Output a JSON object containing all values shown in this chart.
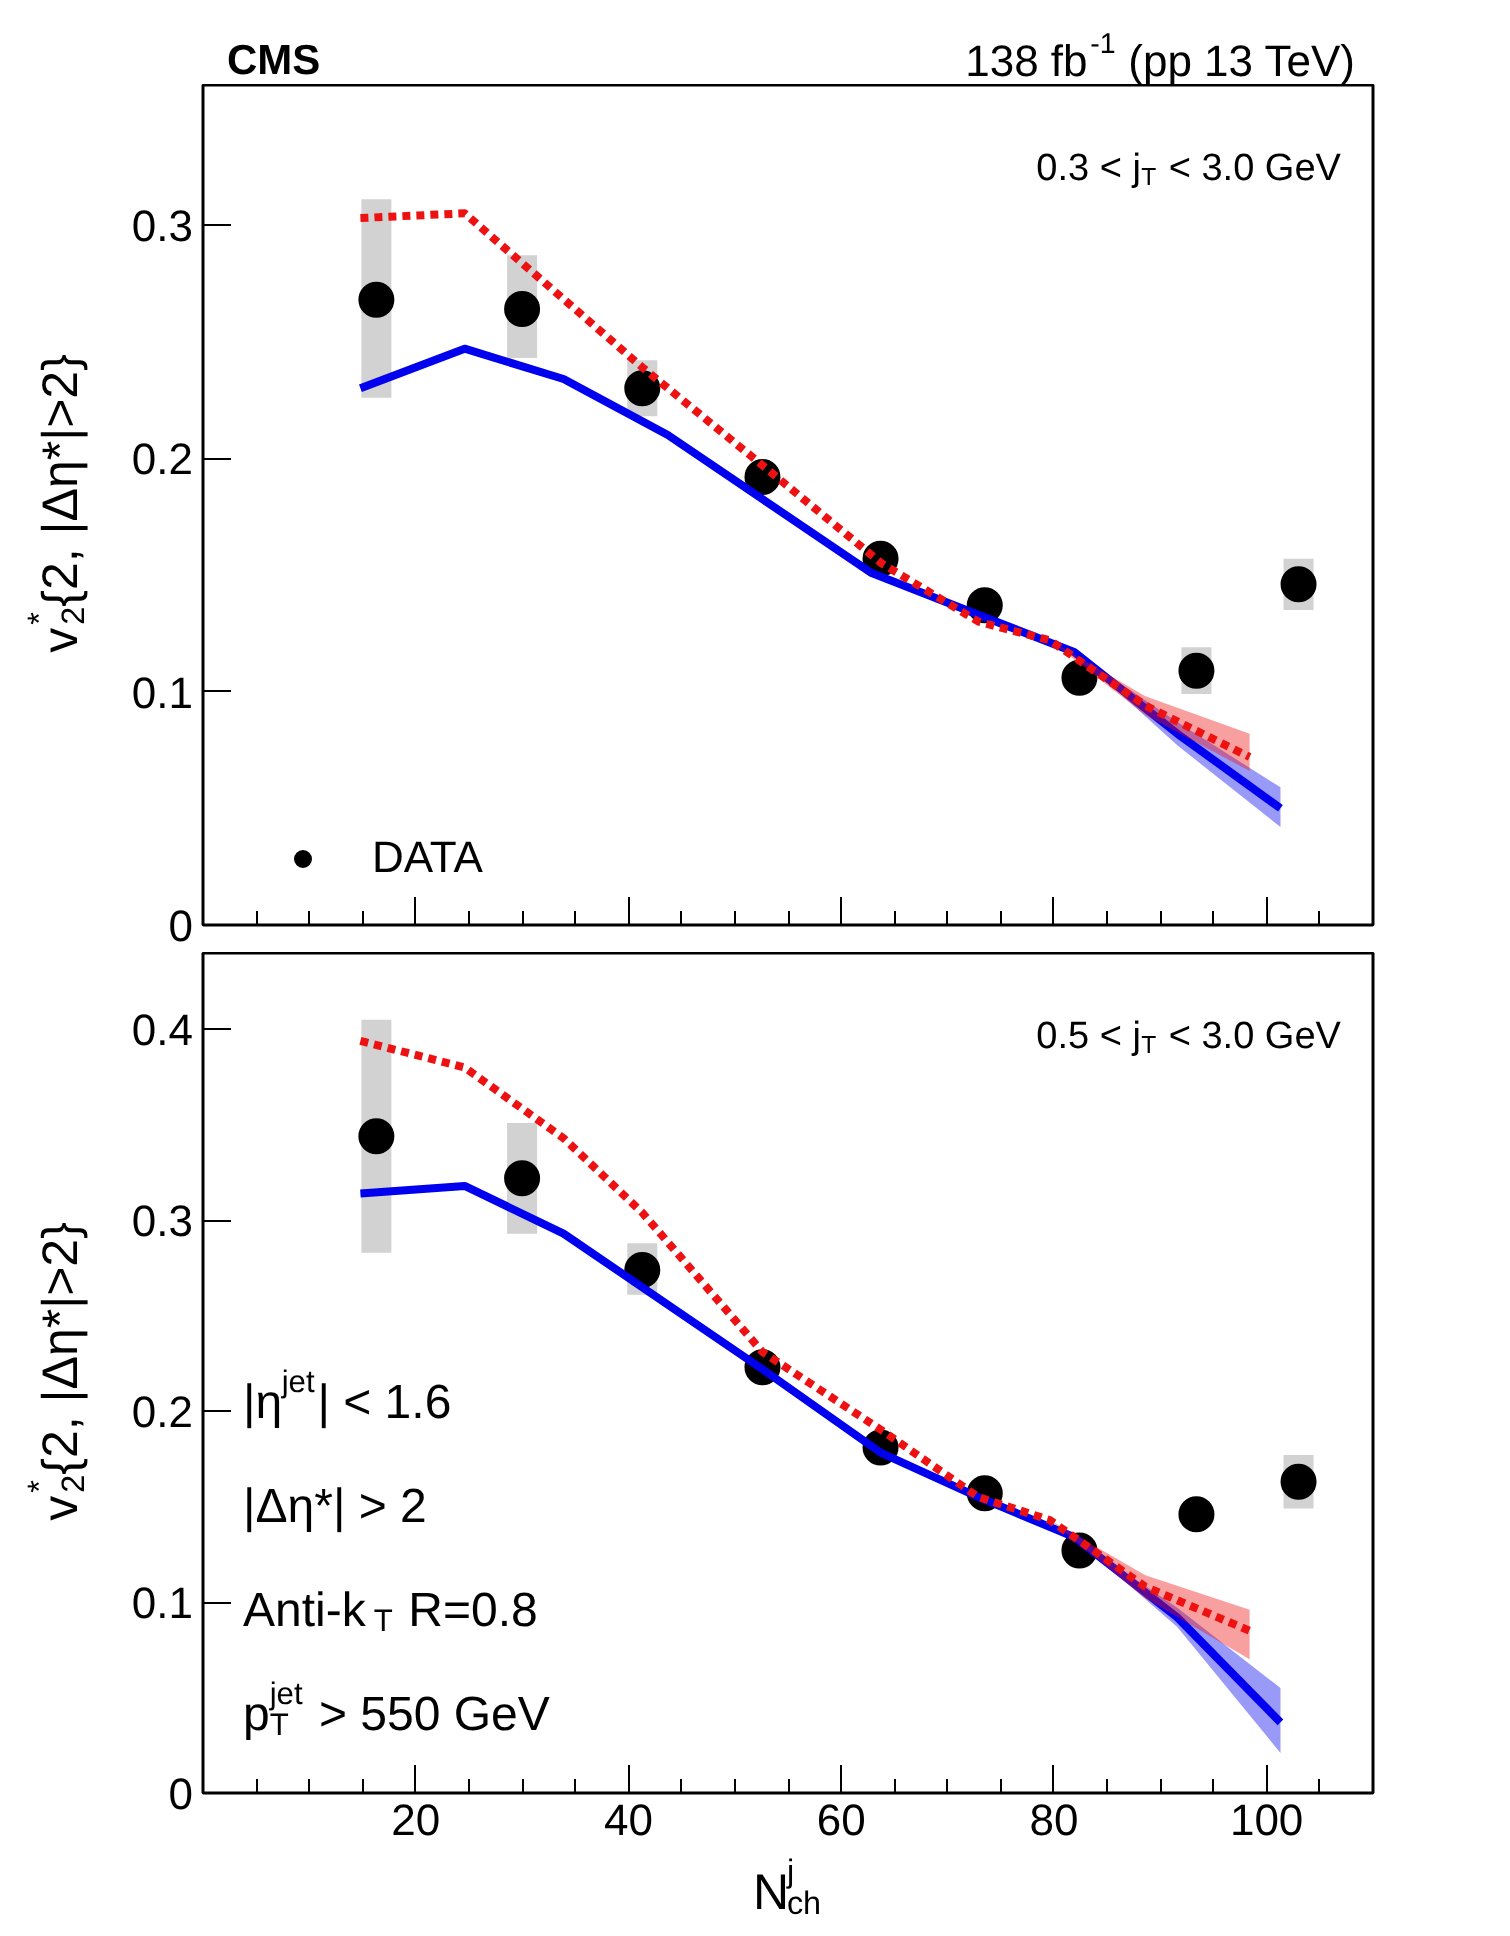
{
  "chart_data": [
    {
      "type": "line",
      "title": "CMS",
      "subtitle": "138 fb$^{-1}$ (pp 13 TeV)",
      "ylabel": "v$^{*}$$_{2}${2, |Δη*|>2}",
      "annotations": [
        "0.3 < j$_{T}$ < 3.0 GeV"
      ],
      "xlim": [
        0,
        110
      ],
      "ylim": [
        0,
        0.36
      ],
      "xticks": [
        20,
        40,
        60,
        80,
        100
      ],
      "yticks": [
        0,
        0.1,
        0.2,
        0.3
      ],
      "tick_labels": "y",
      "legend": "bottom left",
      "series": [
        {
          "name": "DATA",
          "type": "scatter",
          "marker": "circle",
          "color": "#000000",
          "x": [
            16.3,
            30.0,
            41.3,
            52.6,
            63.7,
            73.5,
            82.4,
            93.4,
            103.0
          ],
          "values": [
            0.268,
            0.264,
            0.23,
            0.192,
            0.157,
            0.137,
            0.106,
            0.109,
            0.146
          ],
          "errors": [
            [
              0.226,
              0.311
            ],
            [
              0.243,
              0.287
            ],
            [
              0.218,
              0.242
            ],
            null,
            null,
            null,
            null,
            0.01,
            0.011
          ]
        },
        {
          "line_style": "solid",
          "color": "#0000ee",
          "x": [
            14.8,
            24.6,
            33.9,
            43.7,
            62.8,
            72.9,
            81.9,
            91.6,
            101.3
          ],
          "values": [
            0.23,
            0.247,
            0.234,
            0.21,
            0.151,
            0.133,
            0.117,
            0.082,
            0.05
          ],
          "lower": [
            null,
            null,
            null,
            null,
            null,
            null,
            0.117,
            0.077,
            0.042
          ],
          "upper": [
            null,
            null,
            null,
            null,
            null,
            null,
            0.117,
            0.087,
            0.059
          ]
        },
        {
          "line_style": "dotted",
          "color": "#ee1111",
          "x": [
            14.8,
            24.6,
            41.3,
            52.6,
            63.8,
            72.9,
            79.6,
            88.6,
            98.4
          ],
          "values": [
            0.303,
            0.305,
            0.239,
            0.197,
            0.155,
            0.13,
            0.122,
            0.094,
            0.072
          ],
          "lower": [
            null,
            null,
            null,
            null,
            null,
            null,
            0.122,
            0.09,
            0.066
          ],
          "upper": [
            null,
            null,
            null,
            null,
            null,
            null,
            0.122,
            0.098,
            0.082
          ]
        }
      ]
    },
    {
      "type": "line",
      "xlabel": "N$^{j}$$_{ch}$",
      "ylabel": "v$^{*}$$_{2}${2, |Δη*|>2}",
      "annotations": [
        "0.5 < j$_{T}$ < 3.0 GeV",
        "|η$^{jet}$| < 1.6",
        "|Δη*| > 2",
        "Anti-k$_{T}$ R=0.8",
        "p$^{jet}$$_{T}$ > 550 GeV"
      ],
      "xlim": [
        0,
        110
      ],
      "ylim": [
        0,
        0.44
      ],
      "xticks": [
        20,
        40,
        60,
        80,
        100
      ],
      "yticks": [
        0,
        0.1,
        0.2,
        0.3,
        0.4
      ],
      "series": [
        {
          "type": "scatter",
          "marker": "circle",
          "color": "#000000",
          "x": [
            16.3,
            30.0,
            41.3,
            52.6,
            63.7,
            73.5,
            82.4,
            93.4,
            103.0
          ],
          "values": [
            0.344,
            0.322,
            0.274,
            0.223,
            0.181,
            0.157,
            0.127,
            0.146,
            0.163
          ],
          "errors": [
            [
              0.283,
              0.405
            ],
            [
              0.293,
              0.351
            ],
            [
              0.261,
              0.288
            ],
            null,
            null,
            null,
            null,
            null,
            0.014
          ]
        },
        {
          "line_style": "solid",
          "color": "#0000ee",
          "x": [
            14.8,
            24.6,
            33.9,
            52.6,
            63.8,
            72.9,
            81.9,
            91.6,
            101.3
          ],
          "values": [
            0.314,
            0.318,
            0.293,
            0.222,
            0.178,
            0.155,
            0.134,
            0.092,
            0.037
          ],
          "lower": [
            null,
            null,
            null,
            null,
            null,
            null,
            0.134,
            0.087,
            0.021
          ],
          "upper": [
            null,
            null,
            null,
            null,
            null,
            null,
            0.134,
            0.097,
            0.055
          ]
        },
        {
          "line_style": "dotted",
          "color": "#ee1111",
          "x": [
            14.8,
            24.6,
            33.9,
            41.3,
            52.6,
            63.8,
            72.9,
            79.6,
            88.6,
            98.4
          ],
          "values": [
            0.394,
            0.38,
            0.343,
            0.304,
            0.231,
            0.19,
            0.155,
            0.143,
            0.108,
            0.085
          ],
          "lower": [
            null,
            null,
            null,
            null,
            null,
            null,
            null,
            0.143,
            0.102,
            0.07
          ],
          "upper": [
            null,
            null,
            null,
            null,
            null,
            null,
            null,
            0.143,
            0.114,
            0.096
          ]
        }
      ]
    }
  ]
}
